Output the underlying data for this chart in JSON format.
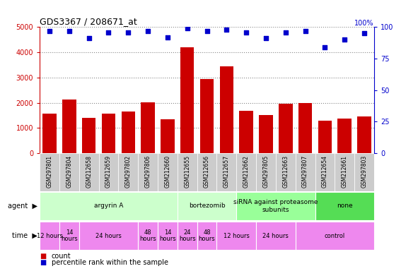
{
  "title": "GDS3367 / 208671_at",
  "samples": [
    "GSM297801",
    "GSM297804",
    "GSM212658",
    "GSM212659",
    "GSM297802",
    "GSM297806",
    "GSM212660",
    "GSM212655",
    "GSM212656",
    "GSM212657",
    "GSM212662",
    "GSM297805",
    "GSM212663",
    "GSM297807",
    "GSM212654",
    "GSM212661",
    "GSM297803"
  ],
  "counts": [
    1580,
    2120,
    1390,
    1570,
    1650,
    2020,
    1350,
    4200,
    2950,
    3430,
    1680,
    1520,
    1970,
    1980,
    1280,
    1360,
    1460
  ],
  "percentiles": [
    97,
    97,
    91,
    96,
    96,
    97,
    92,
    99,
    97,
    98,
    96,
    91,
    96,
    97,
    84,
    90,
    95
  ],
  "ylim_left": [
    0,
    5000
  ],
  "ylim_right": [
    0,
    100
  ],
  "yticks_left": [
    0,
    1000,
    2000,
    3000,
    4000,
    5000
  ],
  "yticks_right": [
    0,
    25,
    50,
    75,
    100
  ],
  "bar_color": "#cc0000",
  "dot_color": "#0000cc",
  "agent_groups": [
    {
      "label": "argyrin A",
      "start": 0,
      "end": 7,
      "color": "#ccffcc"
    },
    {
      "label": "bortezomib",
      "start": 7,
      "end": 10,
      "color": "#ccffcc"
    },
    {
      "label": "siRNA against proteasome\nsubunits",
      "start": 10,
      "end": 14,
      "color": "#99ff99"
    },
    {
      "label": "none",
      "start": 14,
      "end": 17,
      "color": "#55dd55"
    }
  ],
  "time_groups": [
    {
      "label": "12 hours",
      "start": 0,
      "end": 1,
      "color": "#ee88ee"
    },
    {
      "label": "14\nhours",
      "start": 1,
      "end": 2,
      "color": "#ee88ee"
    },
    {
      "label": "24 hours",
      "start": 2,
      "end": 5,
      "color": "#ee88ee"
    },
    {
      "label": "48\nhours",
      "start": 5,
      "end": 6,
      "color": "#ee88ee"
    },
    {
      "label": "14\nhours",
      "start": 6,
      "end": 7,
      "color": "#ee88ee"
    },
    {
      "label": "24\nhours",
      "start": 7,
      "end": 8,
      "color": "#ee88ee"
    },
    {
      "label": "48\nhours",
      "start": 8,
      "end": 9,
      "color": "#ee88ee"
    },
    {
      "label": "12 hours",
      "start": 9,
      "end": 11,
      "color": "#ee88ee"
    },
    {
      "label": "24 hours",
      "start": 11,
      "end": 13,
      "color": "#ee88ee"
    },
    {
      "label": "control",
      "start": 13,
      "end": 17,
      "color": "#ee88ee"
    }
  ],
  "legend_count_color": "#cc0000",
  "legend_dot_color": "#0000cc",
  "title_color": "#000000",
  "bg_color": "#ffffff",
  "tick_label_color_left": "#cc0000",
  "tick_label_color_right": "#0000cc",
  "grid_color": "#888888",
  "sample_bg_color": "#cccccc"
}
